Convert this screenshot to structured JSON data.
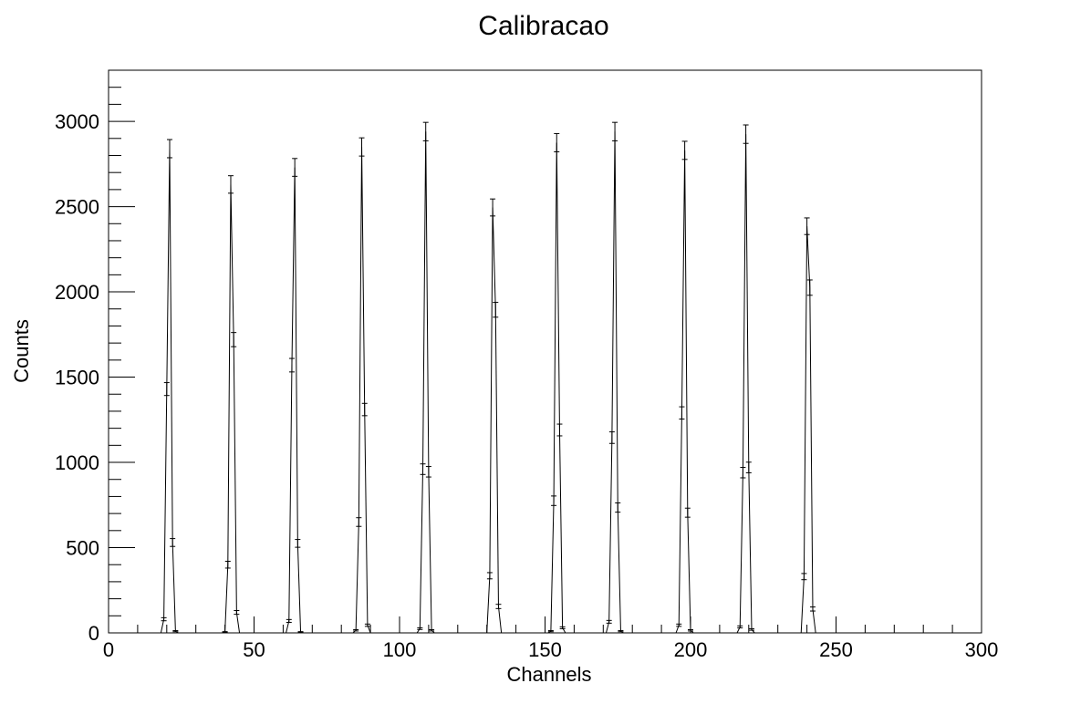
{
  "chart_data": {
    "type": "line",
    "title": "Calibracao",
    "xlabel": "Channels",
    "ylabel": "Counts",
    "xlim": [
      0,
      300
    ],
    "ylim": [
      0,
      3300
    ],
    "x_major_ticks": [
      0,
      50,
      100,
      150,
      200,
      250,
      300
    ],
    "y_major_ticks": [
      0,
      500,
      1000,
      1500,
      2000,
      2500,
      3000
    ],
    "grid": false,
    "legend": "none",
    "series": [
      {
        "x": [
          0,
          18,
          19,
          20,
          21,
          22,
          23,
          24,
          39,
          40,
          41,
          42,
          43,
          44,
          45,
          61,
          62,
          63,
          64,
          65,
          66,
          67,
          84,
          85,
          86,
          87,
          88,
          89,
          90,
          106,
          107,
          108,
          109,
          110,
          111,
          112,
          130,
          131,
          132,
          133,
          134,
          135,
          151,
          152,
          153,
          154,
          155,
          156,
          157,
          171,
          172,
          173,
          174,
          175,
          176,
          177,
          195,
          196,
          197,
          198,
          199,
          200,
          201,
          216,
          217,
          218,
          219,
          220,
          221,
          222,
          238,
          239,
          240,
          241,
          242,
          243,
          300
        ],
        "y": [
          0,
          0,
          80,
          1430,
          2840,
          530,
          10,
          0,
          0,
          5,
          400,
          2630,
          1720,
          120,
          0,
          0,
          70,
          1570,
          2730,
          525,
          5,
          0,
          0,
          15,
          650,
          2850,
          1310,
          45,
          0,
          0,
          25,
          960,
          2940,
          945,
          15,
          0,
          0,
          335,
          2495,
          1895,
          155,
          0,
          0,
          10,
          775,
          2875,
          1190,
          30,
          0,
          0,
          65,
          1145,
          2940,
          735,
          10,
          0,
          0,
          45,
          1290,
          2830,
          705,
          15,
          0,
          0,
          35,
          940,
          2925,
          970,
          20,
          0,
          0,
          330,
          2385,
          2025,
          140,
          0,
          0
        ]
      }
    ]
  }
}
